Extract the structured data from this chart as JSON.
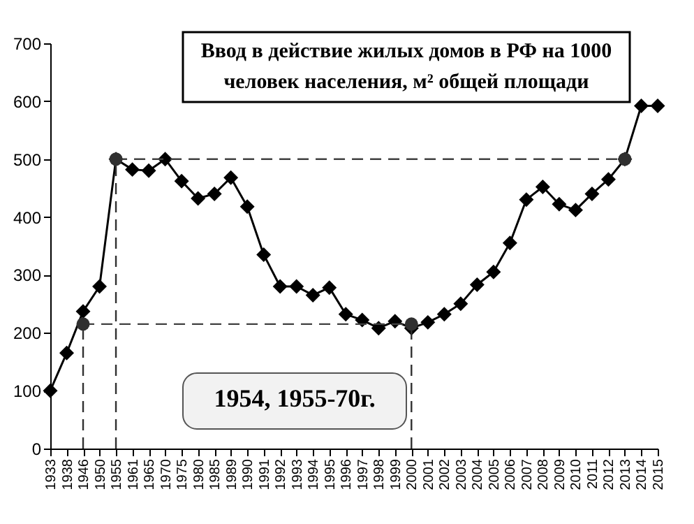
{
  "chart_data": {
    "type": "line",
    "title": "Ввод в действие жилых домов в РФ на 1000\nчеловек населения, м² общей площади",
    "categories": [
      "1933",
      "1938",
      "1946",
      "1950",
      "1955",
      "1961",
      "1965",
      "1970",
      "1975",
      "1980",
      "1985",
      "1989",
      "1990",
      "1991",
      "1992",
      "1993",
      "1994",
      "1995",
      "1996",
      "1997",
      "1998",
      "1999",
      "2000",
      "2001",
      "2002",
      "2003",
      "2004",
      "2005",
      "2006",
      "2007",
      "2008",
      "2009",
      "2010",
      "2011",
      "2012",
      "2013",
      "2014",
      "2015"
    ],
    "series": [
      {
        "color": "#000000",
        "marker": "diamond",
        "line_style": "solid",
        "values": [
          100,
          165,
          237,
          280,
          500,
          482,
          480,
          500,
          462,
          432,
          440,
          468,
          418,
          335,
          280,
          280,
          265,
          278,
          232,
          222,
          208,
          220,
          208,
          218,
          232,
          250,
          283,
          305,
          355,
          430,
          452,
          422,
          412,
          440,
          465,
          500,
          592,
          592
        ]
      },
      {
        "type": "line",
        "color": "#404040",
        "line_style": "dashed",
        "marker": "none",
        "values": [
          null,
          null,
          215,
          215,
          215,
          215,
          215,
          215,
          215,
          215,
          215,
          215,
          215,
          215,
          215,
          215,
          215,
          215,
          215,
          215,
          215,
          215,
          215,
          null,
          null,
          null,
          null,
          null,
          null,
          null,
          null,
          null,
          null,
          null,
          null,
          null,
          null,
          null
        ]
      },
      {
        "type": "line",
        "color": "#404040",
        "line_style": "dashed",
        "marker": "none",
        "values": [
          null,
          null,
          null,
          null,
          500,
          500,
          500,
          500,
          500,
          500,
          500,
          500,
          500,
          500,
          500,
          500,
          500,
          500,
          500,
          500,
          500,
          500,
          500,
          500,
          500,
          500,
          500,
          500,
          500,
          500,
          500,
          500,
          500,
          500,
          500,
          500,
          null,
          null
        ]
      },
      {
        "type": "scatter",
        "color": "#303030",
        "marker": "circle",
        "line_style": "dashed",
        "values": [
          null,
          null,
          215,
          null,
          500,
          null,
          null,
          null,
          null,
          null,
          null,
          null,
          null,
          null,
          null,
          null,
          null,
          null,
          null,
          null,
          null,
          null,
          215,
          null,
          null,
          null,
          null,
          null,
          null,
          null,
          null,
          null,
          null,
          null,
          null,
          500,
          null,
          null
        ],
        "errors": [
          null,
          null,
          [
            0,
            215
          ],
          null,
          [
            0,
            500
          ],
          null,
          null,
          null,
          null,
          null,
          null,
          null,
          null,
          null,
          null,
          null,
          null,
          null,
          null,
          null,
          null,
          null,
          [
            0,
            215
          ],
          null,
          null,
          null,
          null,
          null,
          null,
          null,
          null,
          null,
          null,
          null,
          null,
          null,
          null,
          null
        ]
      }
    ],
    "ylim": [
      0,
      700
    ],
    "yticks": [
      0,
      100,
      200,
      300,
      400,
      500,
      600,
      700
    ],
    "grid": false,
    "annotations": [
      "1954, 1955-70г."
    ]
  }
}
